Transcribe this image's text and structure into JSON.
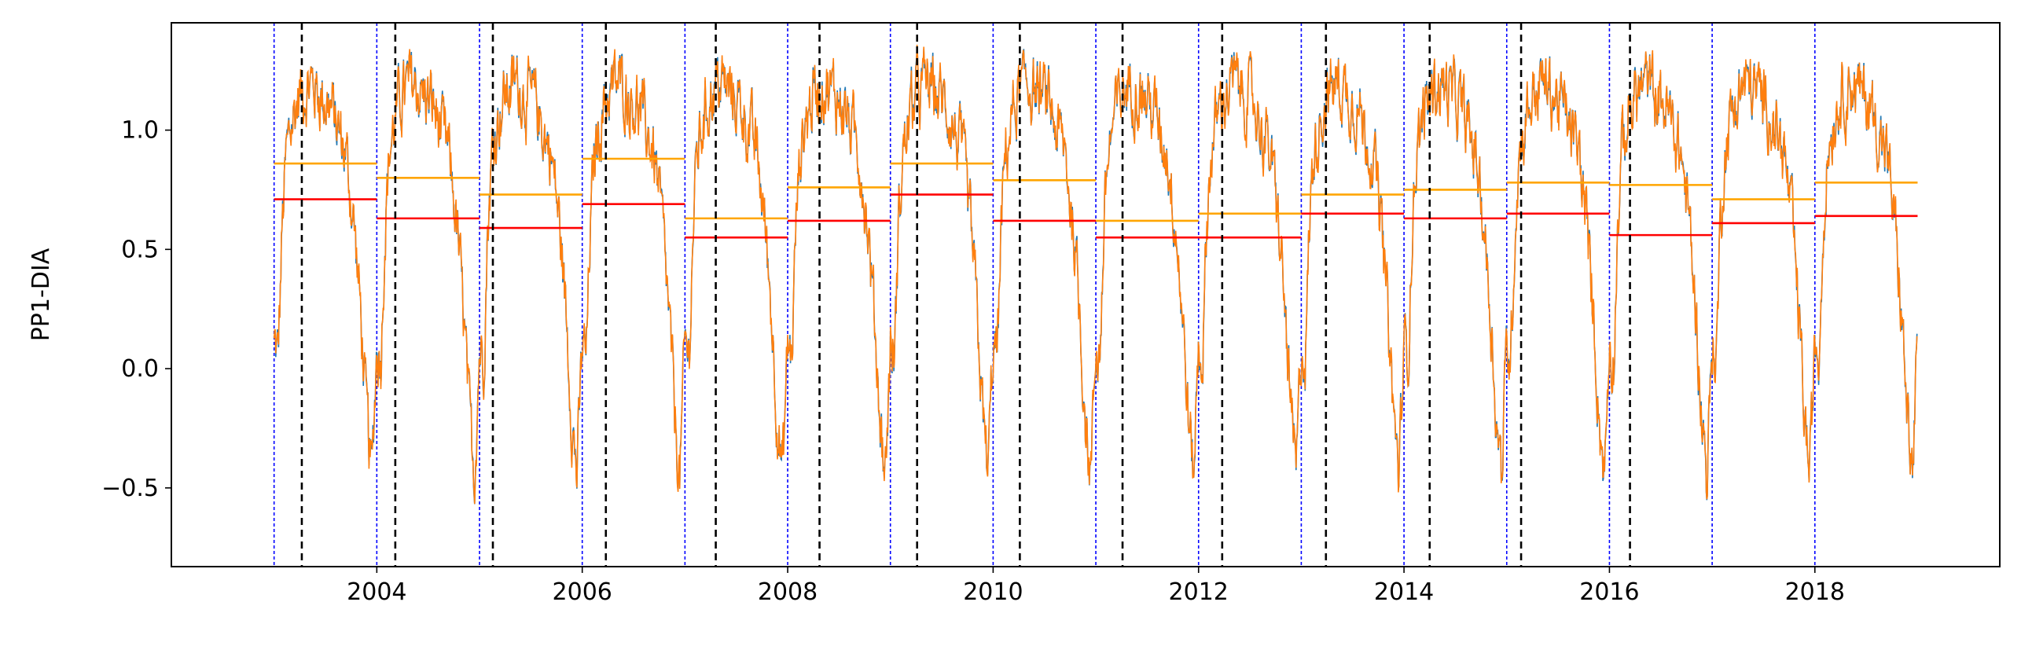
{
  "chart_data": {
    "type": "line",
    "title": "",
    "xlabel": "",
    "ylabel": "PP1-DIA",
    "xlim": [
      2002.0,
      2019.8
    ],
    "ylim": [
      -0.83,
      1.45
    ],
    "x_ticks": [
      2004,
      2006,
      2008,
      2010,
      2012,
      2014,
      2016,
      2018
    ],
    "x_tick_labels": [
      "2004",
      "2006",
      "2008",
      "2010",
      "2012",
      "2014",
      "2016",
      "2018"
    ],
    "y_ticks": [
      -0.5,
      0.0,
      0.5,
      1.0
    ],
    "y_tick_labels": [
      "−0.5",
      "0.0",
      "0.5",
      "1.0"
    ],
    "grid": false,
    "legend": "none",
    "colors": {
      "series_observed": "#1f77b4",
      "series_model": "#ff7f0e",
      "annual_mean_orange": "#ffa500",
      "annual_mean_red": "#ff0000",
      "year_boundary": "#0000ff",
      "marker_line": "#000000"
    },
    "years": [
      2003,
      2004,
      2005,
      2006,
      2007,
      2008,
      2009,
      2010,
      2011,
      2012,
      2013,
      2014,
      2015,
      2016,
      2017,
      2018
    ],
    "annual_level_orange": [
      0.86,
      0.8,
      0.73,
      0.88,
      0.63,
      0.76,
      0.86,
      0.79,
      0.62,
      0.65,
      0.73,
      0.75,
      0.78,
      0.77,
      0.71,
      0.78
    ],
    "annual_level_red": [
      0.71,
      0.63,
      0.59,
      0.69,
      0.55,
      0.62,
      0.73,
      0.62,
      0.55,
      0.55,
      0.65,
      0.63,
      0.65,
      0.56,
      0.61,
      0.64
    ],
    "year_boundaries": [
      2003,
      2004,
      2005,
      2006,
      2007,
      2008,
      2009,
      2010,
      2011,
      2012,
      2013,
      2014,
      2015,
      2016,
      2017,
      2018
    ],
    "black_markers": [
      2003.27,
      2004.18,
      2005.13,
      2006.23,
      2007.3,
      2008.31,
      2009.26,
      2010.26,
      2011.26,
      2012.23,
      2013.24,
      2014.25,
      2015.14,
      2016.2
    ],
    "seasonal_profile": {
      "phase": [
        0.0,
        0.04,
        0.08,
        0.12,
        0.18,
        0.25,
        0.35,
        0.45,
        0.55,
        0.62,
        0.7,
        0.78,
        0.84,
        0.9,
        0.95,
        1.0
      ],
      "value": [
        0.1,
        0.05,
        0.6,
        0.9,
        1.05,
        1.15,
        1.2,
        1.15,
        1.1,
        1.0,
        0.9,
        0.6,
        0.25,
        -0.2,
        -0.45,
        0.1
      ]
    }
  }
}
